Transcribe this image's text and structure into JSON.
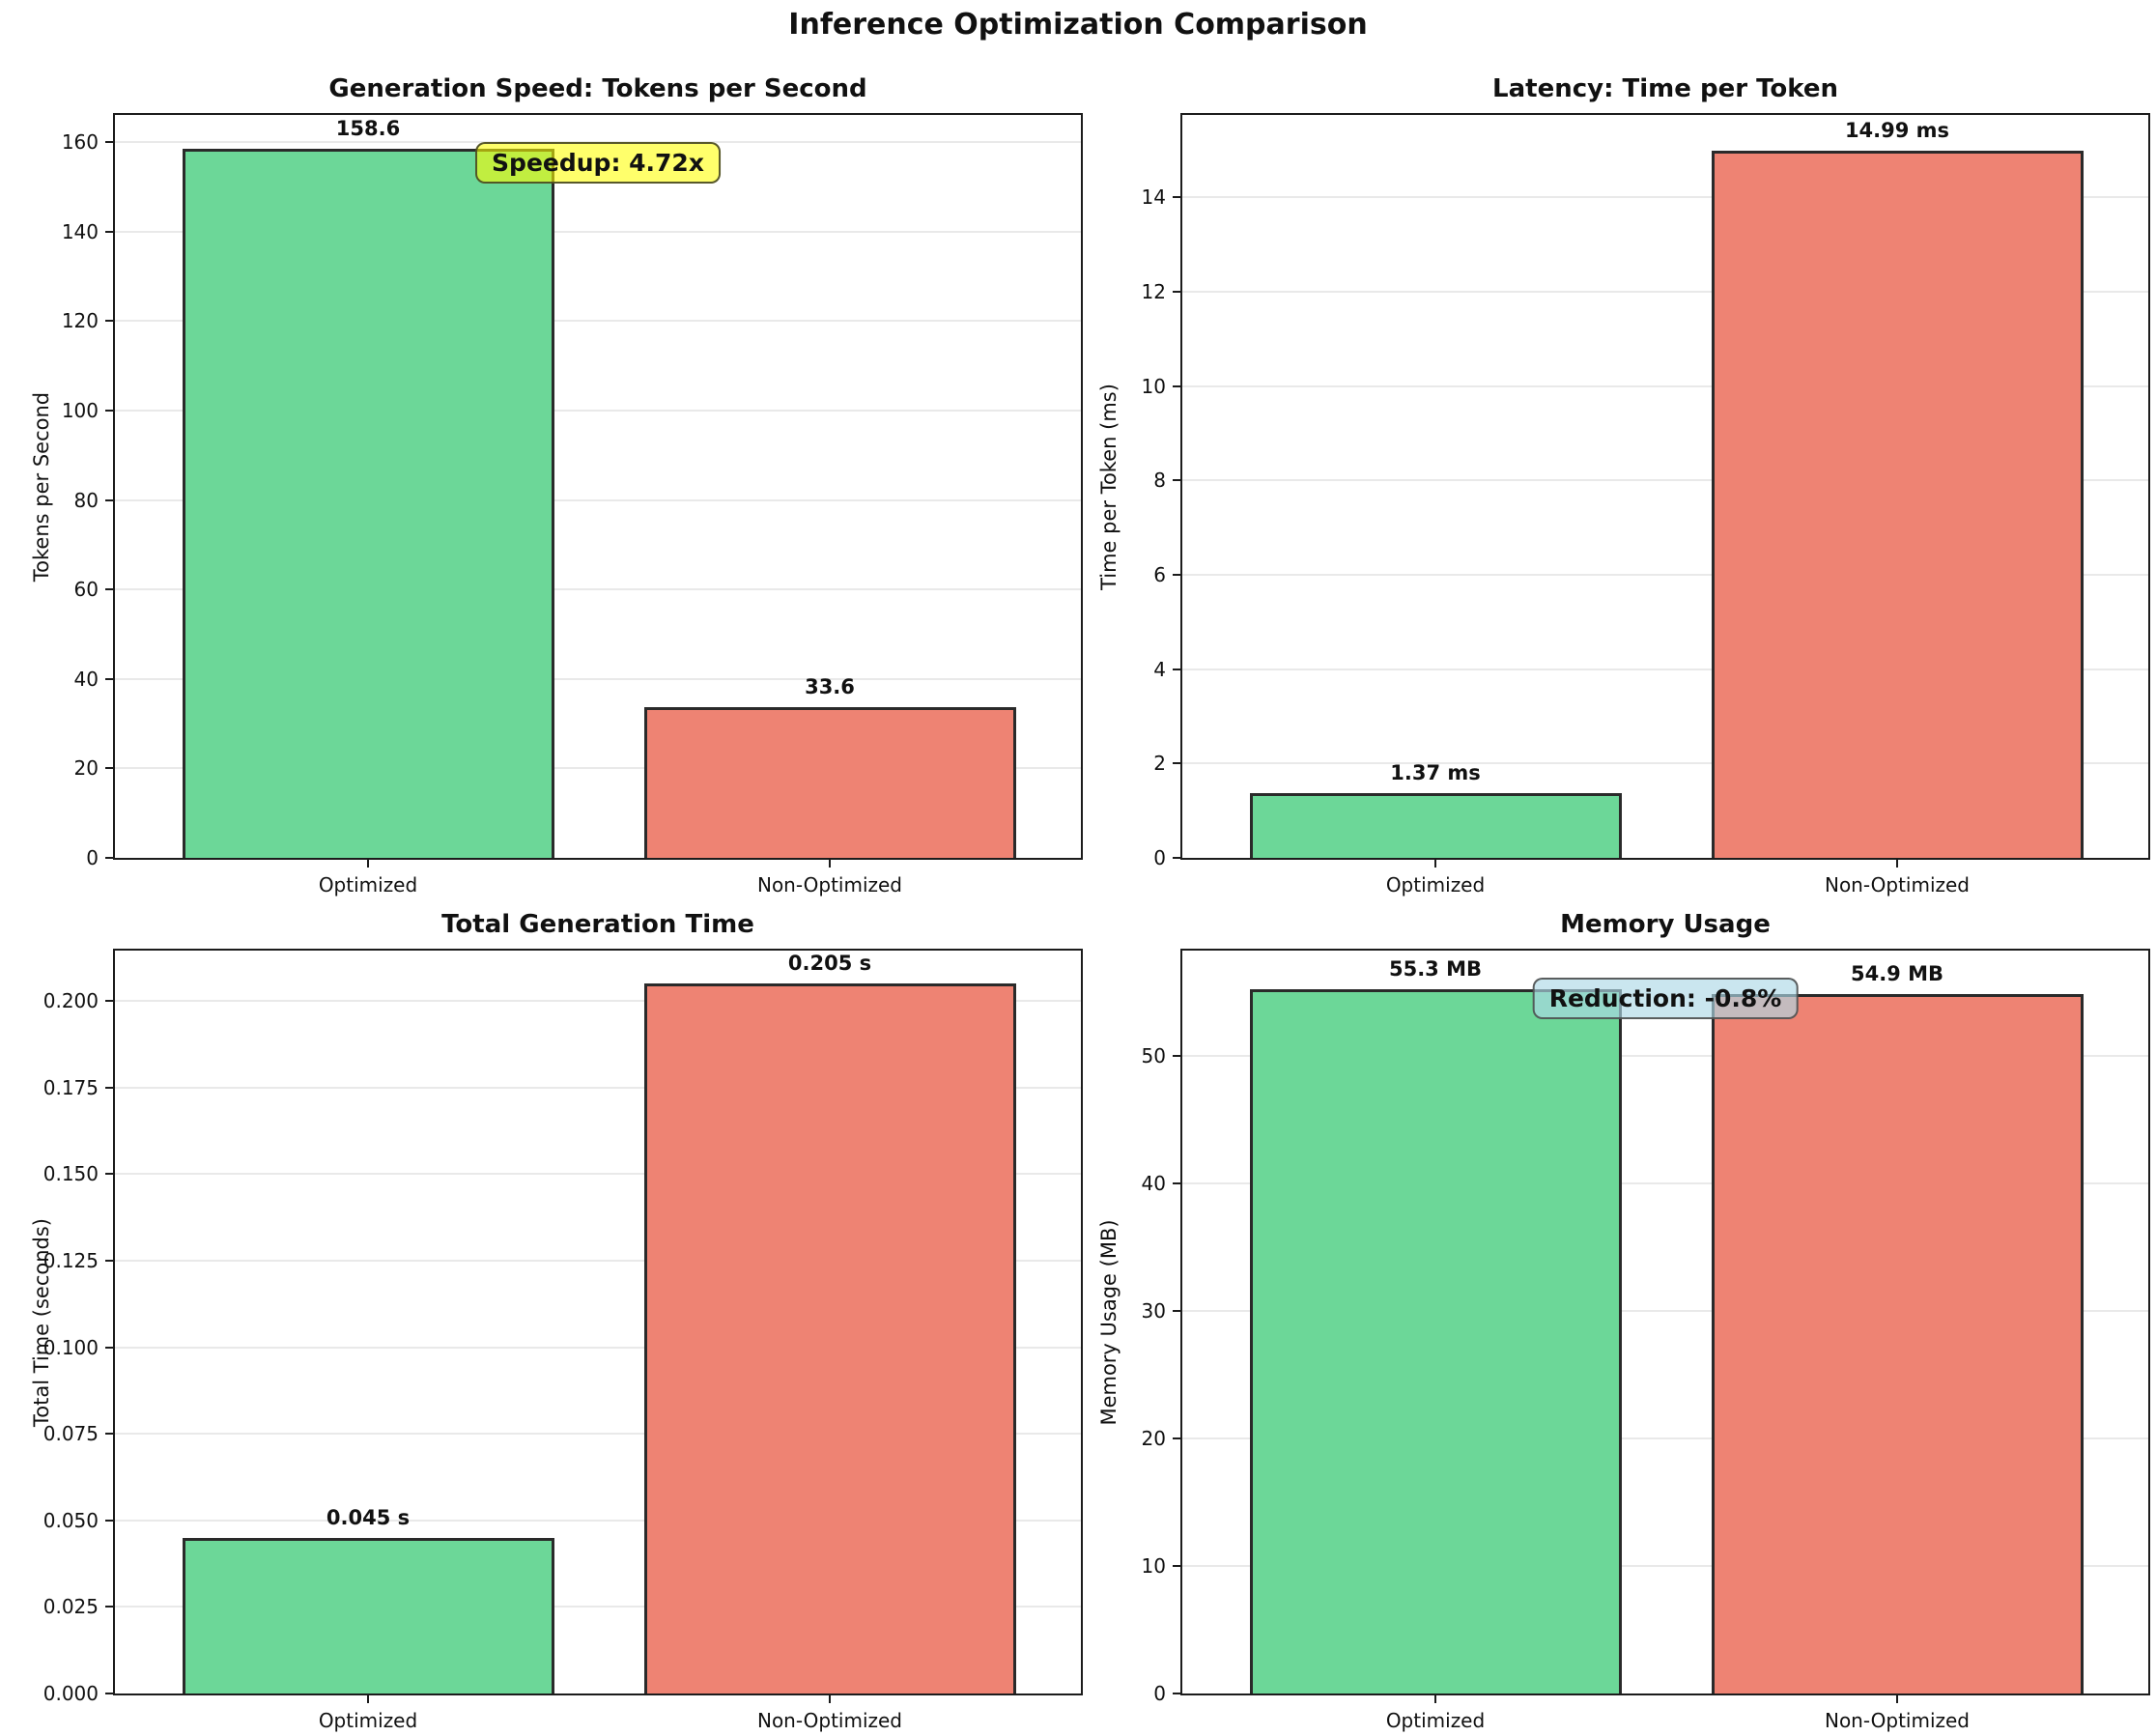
{
  "figure": {
    "title": "Inference Optimization Comparison"
  },
  "style": {
    "background": "#FFFFFF",
    "grid_color": "#E9E9E9",
    "spine_color": "#1C1C1C",
    "text_color": "#111111",
    "optimized_color": "#6CD798",
    "non_optimized_color": "#EE8373",
    "bar_edge_color": "#2A2A2A"
  },
  "chart_data": [
    {
      "id": "generation-speed",
      "type": "bar",
      "title": "Generation Speed: Tokens per Second",
      "ylabel": "Tokens per Second",
      "categories": [
        "Optimized",
        "Non-Optimized"
      ],
      "values": [
        158.6,
        33.6
      ],
      "value_labels": [
        "158.6",
        "33.6"
      ],
      "bar_colors": [
        "#6CD798",
        "#EE8373"
      ],
      "ylim": [
        0,
        166.1
      ],
      "ytick_values": [
        0,
        20,
        40,
        60,
        80,
        100,
        120,
        140,
        160
      ],
      "ytick_labels": [
        "0",
        "20",
        "40",
        "60",
        "80",
        "100",
        "120",
        "140",
        "160"
      ],
      "grid": true,
      "annotation": {
        "text": "Speedup: 4.72x",
        "fill": "rgba(255,255,0,0.58)",
        "border": "rgba(70,70,35,0.9)"
      }
    },
    {
      "id": "latency",
      "type": "bar",
      "title": "Latency: Time per Token",
      "ylabel": "Time per Token (ms)",
      "categories": [
        "Optimized",
        "Non-Optimized"
      ],
      "values": [
        1.37,
        14.99
      ],
      "value_labels": [
        "1.37 ms",
        "14.99 ms"
      ],
      "bar_colors": [
        "#6CD798",
        "#EE8373"
      ],
      "ylim": [
        0,
        15.75
      ],
      "ytick_values": [
        0,
        2,
        4,
        6,
        8,
        10,
        12,
        14
      ],
      "ytick_labels": [
        "0",
        "2",
        "4",
        "6",
        "8",
        "10",
        "12",
        "14"
      ],
      "grid": true,
      "annotation": null
    },
    {
      "id": "total-time",
      "type": "bar",
      "title": "Total Generation Time",
      "ylabel": "Total Time (seconds)",
      "categories": [
        "Optimized",
        "Non-Optimized"
      ],
      "values": [
        0.045,
        0.205
      ],
      "value_labels": [
        "0.045 s",
        "0.205 s"
      ],
      "bar_colors": [
        "#6CD798",
        "#EE8373"
      ],
      "ylim": [
        0,
        0.2145
      ],
      "ytick_values": [
        0,
        0.025,
        0.05,
        0.075,
        0.1,
        0.125,
        0.15,
        0.175,
        0.2
      ],
      "ytick_labels": [
        "0.000",
        "0.025",
        "0.050",
        "0.075",
        "0.100",
        "0.125",
        "0.150",
        "0.175",
        "0.200"
      ],
      "grid": true,
      "annotation": null
    },
    {
      "id": "memory-usage",
      "type": "bar",
      "title": "Memory Usage",
      "ylabel": "Memory Usage (MB)",
      "categories": [
        "Optimized",
        "Non-Optimized"
      ],
      "values": [
        55.3,
        54.9
      ],
      "value_labels": [
        "55.3 MB",
        "54.9 MB"
      ],
      "bar_colors": [
        "#6CD798",
        "#EE8373"
      ],
      "ylim": [
        0,
        58.3
      ],
      "ytick_values": [
        0,
        10,
        20,
        30,
        40,
        50
      ],
      "ytick_labels": [
        "0",
        "10",
        "20",
        "30",
        "40",
        "50"
      ],
      "grid": true,
      "annotation": {
        "text": "Reduction: -0.8%",
        "fill": "rgba(173,216,230,0.65)",
        "border": "rgba(70,70,70,0.85)"
      }
    }
  ]
}
